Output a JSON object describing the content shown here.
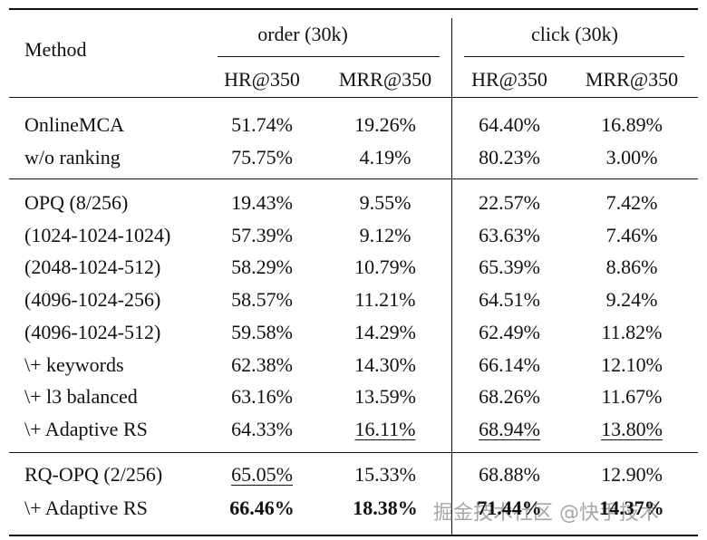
{
  "table": {
    "header": {
      "method": "Method",
      "groups": [
        {
          "title": "order (30k)",
          "columns": [
            "HR@350",
            "MRR@350"
          ]
        },
        {
          "title": "click (30k)",
          "columns": [
            "HR@350",
            "MRR@350"
          ]
        }
      ]
    },
    "sections": [
      {
        "rows": [
          {
            "method": "OnlineMCA",
            "cells": [
              {
                "text": "51.74%"
              },
              {
                "text": "19.26%"
              },
              {
                "text": "64.40%"
              },
              {
                "text": "16.89%"
              }
            ]
          },
          {
            "method": "w/o ranking",
            "cells": [
              {
                "text": "75.75%"
              },
              {
                "text": "4.19%"
              },
              {
                "text": "80.23%"
              },
              {
                "text": "3.00%"
              }
            ]
          }
        ]
      },
      {
        "rows": [
          {
            "method": "OPQ (8/256)",
            "cells": [
              {
                "text": "19.43%"
              },
              {
                "text": "9.55%"
              },
              {
                "text": "22.57%"
              },
              {
                "text": "7.42%"
              }
            ]
          },
          {
            "method": "(1024-1024-1024)",
            "cells": [
              {
                "text": "57.39%"
              },
              {
                "text": "9.12%"
              },
              {
                "text": "63.63%"
              },
              {
                "text": "7.46%"
              }
            ]
          },
          {
            "method": "(2048-1024-512)",
            "cells": [
              {
                "text": "58.29%"
              },
              {
                "text": "10.79%"
              },
              {
                "text": "65.39%"
              },
              {
                "text": "8.86%"
              }
            ]
          },
          {
            "method": "(4096-1024-256)",
            "cells": [
              {
                "text": "58.57%"
              },
              {
                "text": "11.21%"
              },
              {
                "text": "64.51%"
              },
              {
                "text": "9.24%"
              }
            ]
          },
          {
            "method": "(4096-1024-512)",
            "cells": [
              {
                "text": "59.58%"
              },
              {
                "text": "14.29%"
              },
              {
                "text": "62.49%"
              },
              {
                "text": "11.82%"
              }
            ]
          },
          {
            "method": "\\+ keywords",
            "cells": [
              {
                "text": "62.38%"
              },
              {
                "text": "14.30%"
              },
              {
                "text": "66.14%"
              },
              {
                "text": "12.10%"
              }
            ]
          },
          {
            "method": "\\+ l3 balanced",
            "cells": [
              {
                "text": "63.16%"
              },
              {
                "text": "13.59%"
              },
              {
                "text": "68.26%"
              },
              {
                "text": "11.67%"
              }
            ]
          },
          {
            "method": "\\+ Adaptive RS",
            "cells": [
              {
                "text": "64.33%"
              },
              {
                "text": "16.11%",
                "underline": true
              },
              {
                "text": "68.94%",
                "underline": true
              },
              {
                "text": "13.80%",
                "underline": true
              }
            ]
          }
        ]
      },
      {
        "rows": [
          {
            "method": "RQ-OPQ (2/256)",
            "cells": [
              {
                "text": "65.05%",
                "underline": true
              },
              {
                "text": "15.33%"
              },
              {
                "text": "68.88%"
              },
              {
                "text": "12.90%"
              }
            ]
          },
          {
            "method": "\\+ Adaptive RS",
            "cells": [
              {
                "text": "66.46%",
                "bold": true
              },
              {
                "text": "18.38%",
                "bold": true
              },
              {
                "text": "71.44%",
                "bold": true
              },
              {
                "text": "14.37%",
                "bold": true
              }
            ]
          }
        ]
      }
    ]
  },
  "watermark": "掘金技术社区 @快手技术"
}
